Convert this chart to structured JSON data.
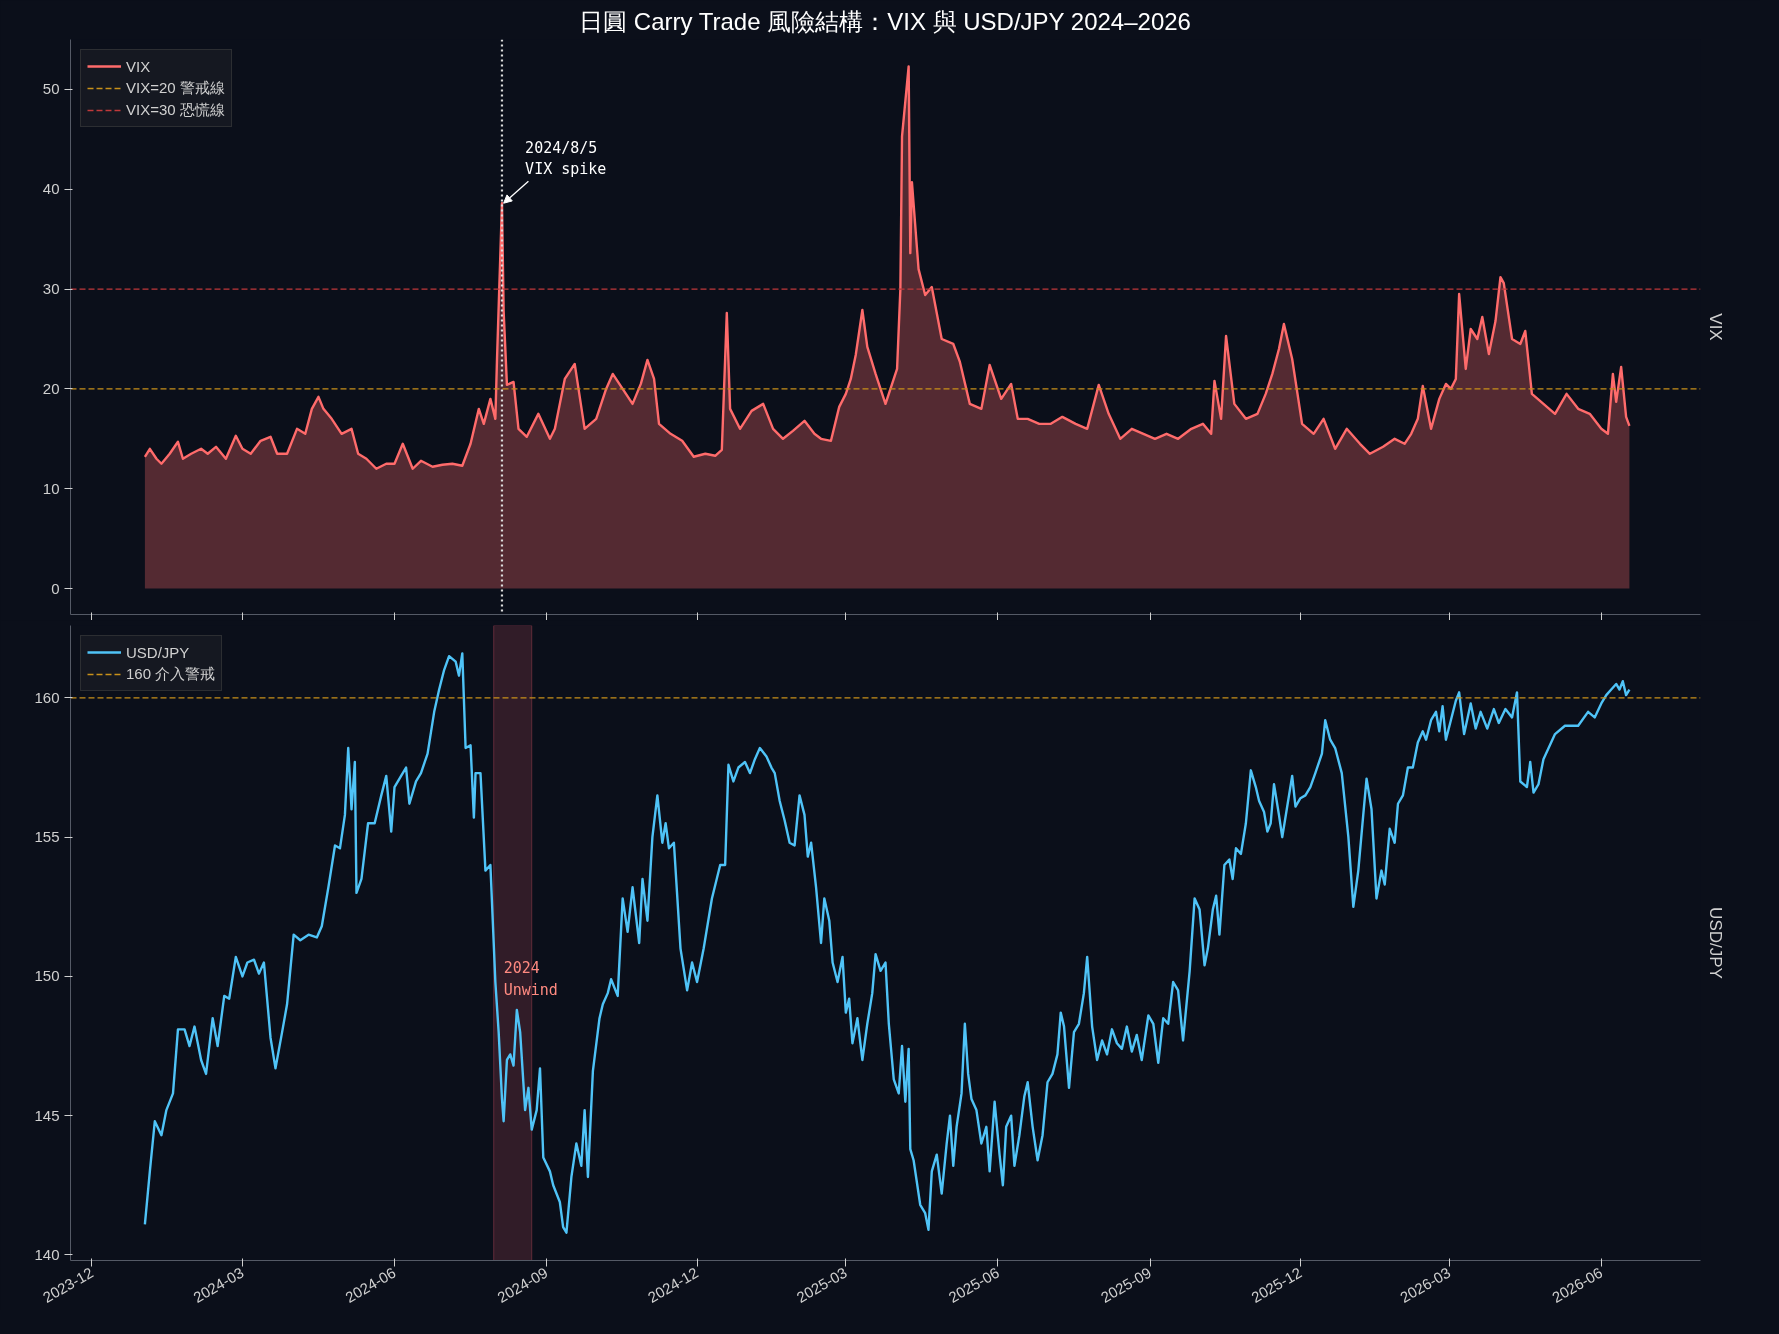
{
  "chart_data": [
    {
      "type": "area",
      "title": "日圓 Carry Trade 風險結構：VIX 與 USD/JPY 2024–2026",
      "ylabel": "VIX",
      "legend": "top left",
      "tick_labels": "y",
      "grid": false,
      "xlim": [
        "2023-11-18",
        "2026-07-31"
      ],
      "ylim": [
        -2.6,
        55
      ],
      "yticks": [
        0,
        10,
        20,
        30,
        40,
        50
      ],
      "xticks": [
        {
          "value": "2023-12-01",
          "label": null
        },
        {
          "value": "2024-03-01",
          "label": null
        },
        {
          "value": "2024-06-01",
          "label": null
        },
        {
          "value": "2024-09-01",
          "label": null
        },
        {
          "value": "2024-12-01",
          "label": null
        },
        {
          "value": "2025-03-01",
          "label": null
        },
        {
          "value": "2025-06-01",
          "label": null
        },
        {
          "value": "2025-09-01",
          "label": null
        },
        {
          "value": "2025-12-01",
          "label": null
        },
        {
          "value": "2026-03-01",
          "label": null
        },
        {
          "value": "2026-06-01",
          "label": null
        }
      ],
      "series": [
        {
          "name": "VIX",
          "color": "#ff6b6b",
          "x": [
            "2024-01-02",
            "2024-01-05",
            "2024-01-09",
            "2024-01-12",
            "2024-01-17",
            "2024-01-22",
            "2024-01-25",
            "2024-01-30",
            "2024-02-05",
            "2024-02-09",
            "2024-02-14",
            "2024-02-20",
            "2024-02-26",
            "2024-03-01",
            "2024-03-06",
            "2024-03-12",
            "2024-03-18",
            "2024-03-22",
            "2024-03-28",
            "2024-04-03",
            "2024-04-08",
            "2024-04-12",
            "2024-04-16",
            "2024-04-19",
            "2024-04-24",
            "2024-04-30",
            "2024-05-06",
            "2024-05-10",
            "2024-05-15",
            "2024-05-21",
            "2024-05-27",
            "2024-06-01",
            "2024-06-06",
            "2024-06-12",
            "2024-06-17",
            "2024-06-24",
            "2024-06-30",
            "2024-07-06",
            "2024-07-12",
            "2024-07-17",
            "2024-07-22",
            "2024-07-25",
            "2024-07-29",
            "2024-08-01",
            "2024-08-02",
            "2024-08-05",
            "2024-08-06",
            "2024-08-08",
            "2024-08-12",
            "2024-08-15",
            "2024-08-20",
            "2024-08-27",
            "2024-09-03",
            "2024-09-06",
            "2024-09-12",
            "2024-09-18",
            "2024-09-24",
            "2024-10-01",
            "2024-10-07",
            "2024-10-11",
            "2024-10-17",
            "2024-10-23",
            "2024-10-28",
            "2024-11-01",
            "2024-11-05",
            "2024-11-08",
            "2024-11-15",
            "2024-11-22",
            "2024-11-29",
            "2024-12-06",
            "2024-12-12",
            "2024-12-16",
            "2024-12-19",
            "2024-12-21",
            "2024-12-27",
            "2025-01-03",
            "2025-01-10",
            "2025-01-16",
            "2025-01-22",
            "2025-01-28",
            "2025-02-04",
            "2025-02-10",
            "2025-02-14",
            "2025-02-20",
            "2025-02-25",
            "2025-03-01",
            "2025-03-04",
            "2025-03-07",
            "2025-03-11",
            "2025-03-14",
            "2025-03-19",
            "2025-03-25",
            "2025-04-01",
            "2025-04-03",
            "2025-04-04",
            "2025-04-08",
            "2025-04-09",
            "2025-04-10",
            "2025-04-14",
            "2025-04-18",
            "2025-04-22",
            "2025-04-28",
            "2025-05-05",
            "2025-05-09",
            "2025-05-15",
            "2025-05-22",
            "2025-05-27",
            "2025-06-03",
            "2025-06-09",
            "2025-06-13",
            "2025-06-19",
            "2025-06-26",
            "2025-07-03",
            "2025-07-10",
            "2025-07-18",
            "2025-07-25",
            "2025-08-01",
            "2025-08-07",
            "2025-08-14",
            "2025-08-21",
            "2025-08-28",
            "2025-09-04",
            "2025-09-11",
            "2025-09-18",
            "2025-09-26",
            "2025-10-03",
            "2025-10-08",
            "2025-10-10",
            "2025-10-14",
            "2025-10-17",
            "2025-10-22",
            "2025-10-29",
            "2025-11-05",
            "2025-11-10",
            "2025-11-14",
            "2025-11-18",
            "2025-11-21",
            "2025-11-26",
            "2025-12-02",
            "2025-12-09",
            "2025-12-15",
            "2025-12-22",
            "2025-12-29",
            "2026-01-06",
            "2026-01-12",
            "2026-01-20",
            "2026-01-27",
            "2026-02-02",
            "2026-02-06",
            "2026-02-10",
            "2026-02-13",
            "2026-02-18",
            "2026-02-23",
            "2026-02-27",
            "2026-03-02",
            "2026-03-05",
            "2026-03-07",
            "2026-03-11",
            "2026-03-14",
            "2026-03-18",
            "2026-03-21",
            "2026-03-25",
            "2026-03-29",
            "2026-04-01",
            "2026-04-03",
            "2026-04-08",
            "2026-04-13",
            "2026-04-16",
            "2026-04-20",
            "2026-04-27",
            "2026-05-04",
            "2026-05-11",
            "2026-05-18",
            "2026-05-25",
            "2026-06-01",
            "2026-06-05",
            "2026-06-08",
            "2026-06-10",
            "2026-06-13",
            "2026-06-16",
            "2026-06-18"
          ],
          "values": [
            13.2,
            14,
            13,
            12.5,
            13.5,
            14.7,
            13,
            13.5,
            14,
            13.5,
            14.2,
            13,
            15.3,
            14,
            13.5,
            14.8,
            15.2,
            13.5,
            13.5,
            16,
            15.5,
            18,
            19.2,
            18,
            17,
            15.5,
            16,
            13.5,
            13,
            12,
            12.5,
            12.5,
            14.5,
            12,
            12.8,
            12.2,
            12.4,
            12.5,
            12.3,
            14.5,
            18,
            16.5,
            19,
            17,
            23,
            38.6,
            27.8,
            20.4,
            20.7,
            16,
            15.2,
            17.5,
            15,
            16,
            21,
            22.5,
            16,
            17,
            20,
            21.5,
            20,
            18.5,
            20.5,
            22.9,
            21,
            16.5,
            15.5,
            14.8,
            13.2,
            13.5,
            13.3,
            13.9,
            27.6,
            18,
            16,
            17.8,
            18.5,
            16,
            15,
            15.8,
            16.8,
            15.5,
            15,
            14.8,
            18.2,
            19.5,
            21,
            23.4,
            27.9,
            24.2,
            21.5,
            18.5,
            22,
            30,
            45.3,
            52.3,
            33.6,
            40.7,
            32,
            29.4,
            30.2,
            25,
            24.5,
            22.7,
            18.5,
            18,
            22.4,
            19,
            20.5,
            17,
            17,
            16.5,
            16.5,
            17.2,
            16.5,
            16,
            20.4,
            17.5,
            15,
            16,
            15.5,
            15,
            15.5,
            15,
            16,
            16.5,
            15.5,
            20.8,
            17,
            25.3,
            18.5,
            17,
            17.5,
            19.5,
            21.5,
            24,
            26.5,
            23,
            16.5,
            15.5,
            17,
            14,
            16,
            14.5,
            13.5,
            14.2,
            15,
            14.5,
            15.5,
            17,
            20.3,
            16,
            19,
            20.5,
            20,
            21,
            29.5,
            22,
            26,
            25,
            27.2,
            23.5,
            26.8,
            31.2,
            30.6,
            25,
            24.5,
            25.8,
            19.5,
            18.5,
            17.5,
            19.5,
            18,
            17.5,
            16,
            15.5,
            21.5,
            18.7,
            22.2,
            17.2,
            16.3
          ]
        }
      ],
      "ref_lines": [
        {
          "axis": "y",
          "value": 20,
          "label": "VIX=20 警戒線",
          "color": "#c8901a",
          "line_style": "dashed"
        },
        {
          "axis": "y",
          "value": 30,
          "label": "VIX=30 恐慌線",
          "color": "#c0393b",
          "line_style": "dashed"
        },
        {
          "axis": "x",
          "value": "2024-08-05",
          "color": "#dddddd",
          "line_style": "dotted"
        }
      ],
      "annotations": [
        {
          "text": "2024/8/5\nVIX spike",
          "x": "2024-08-05",
          "y": 38.6
        }
      ]
    },
    {
      "type": "line",
      "ylabel": "USD/JPY",
      "legend": "top left",
      "grid": false,
      "xlim": [
        "2023-11-18",
        "2026-07-31"
      ],
      "ylim": [
        139.8,
        162.6
      ],
      "yticks": [
        140,
        145,
        150,
        155,
        160
      ],
      "xticks": [
        {
          "value": "2023-12-01",
          "label": "2023-12"
        },
        {
          "value": "2024-03-01",
          "label": "2024-03"
        },
        {
          "value": "2024-06-01",
          "label": "2024-06"
        },
        {
          "value": "2024-09-01",
          "label": "2024-09"
        },
        {
          "value": "2024-12-01",
          "label": "2024-12"
        },
        {
          "value": "2025-03-01",
          "label": "2025-03"
        },
        {
          "value": "2025-06-01",
          "label": "2025-06"
        },
        {
          "value": "2025-09-01",
          "label": "2025-09"
        },
        {
          "value": "2025-12-01",
          "label": "2025-12"
        },
        {
          "value": "2026-03-01",
          "label": "2026-03"
        },
        {
          "value": "2026-06-01",
          "label": "2026-06"
        }
      ],
      "series": [
        {
          "name": "USD/JPY",
          "color": "#4fc3f7",
          "x": [
            "2024-01-02",
            "2024-01-05",
            "2024-01-08",
            "2024-01-12",
            "2024-01-15",
            "2024-01-19",
            "2024-01-22",
            "2024-01-26",
            "2024-01-29",
            "2024-02-01",
            "2024-02-05",
            "2024-02-08",
            "2024-02-12",
            "2024-02-15",
            "2024-02-19",
            "2024-02-22",
            "2024-02-26",
            "2024-03-01",
            "2024-03-04",
            "2024-03-08",
            "2024-03-11",
            "2024-03-14",
            "2024-03-18",
            "2024-03-21",
            "2024-03-25",
            "2024-03-28",
            "2024-04-01",
            "2024-04-05",
            "2024-04-10",
            "2024-04-15",
            "2024-04-18",
            "2024-04-22",
            "2024-04-26",
            "2024-04-29",
            "2024-05-02",
            "2024-05-04",
            "2024-05-06",
            "2024-05-08",
            "2024-05-09",
            "2024-05-12",
            "2024-05-16",
            "2024-05-20",
            "2024-05-24",
            "2024-05-27",
            "2024-05-30",
            "2024-06-01",
            "2024-06-05",
            "2024-06-08",
            "2024-06-10",
            "2024-06-14",
            "2024-06-17",
            "2024-06-21",
            "2024-06-25",
            "2024-06-28",
            "2024-07-01",
            "2024-07-04",
            "2024-07-08",
            "2024-07-10",
            "2024-07-12",
            "2024-07-14",
            "2024-07-17",
            "2024-07-19",
            "2024-07-20",
            "2024-07-23",
            "2024-07-26",
            "2024-07-29",
            "2024-08-01",
            "2024-08-03",
            "2024-08-05",
            "2024-08-06",
            "2024-08-08",
            "2024-08-10",
            "2024-08-12",
            "2024-08-14",
            "2024-08-16",
            "2024-08-19",
            "2024-08-21",
            "2024-08-23",
            "2024-08-26",
            "2024-08-28",
            "2024-08-30",
            "2024-09-03",
            "2024-09-05",
            "2024-09-09",
            "2024-09-11",
            "2024-09-13",
            "2024-09-16",
            "2024-09-19",
            "2024-09-22",
            "2024-09-24",
            "2024-09-26",
            "2024-09-29",
            "2024-10-03",
            "2024-10-05",
            "2024-10-08",
            "2024-10-10",
            "2024-10-14",
            "2024-10-17",
            "2024-10-20",
            "2024-10-23",
            "2024-10-27",
            "2024-10-29",
            "2024-11-01",
            "2024-11-04",
            "2024-11-07",
            "2024-11-10",
            "2024-11-12",
            "2024-11-14",
            "2024-11-17",
            "2024-11-21",
            "2024-11-25",
            "2024-11-28",
            "2024-12-01",
            "2024-12-05",
            "2024-12-10",
            "2024-12-15",
            "2024-12-18",
            "2024-12-20",
            "2024-12-23",
            "2024-12-26",
            "2024-12-30",
            "2025-01-02",
            "2025-01-05",
            "2025-01-08",
            "2025-01-12",
            "2025-01-15",
            "2025-01-17",
            "2025-01-20",
            "2025-01-23",
            "2025-01-26",
            "2025-01-29",
            "2025-02-01",
            "2025-02-04",
            "2025-02-06",
            "2025-02-08",
            "2025-02-11",
            "2025-02-14",
            "2025-02-16",
            "2025-02-19",
            "2025-02-21",
            "2025-02-24",
            "2025-02-27",
            "2025-03-01",
            "2025-03-03",
            "2025-03-05",
            "2025-03-08",
            "2025-03-11",
            "2025-03-14",
            "2025-03-17",
            "2025-03-19",
            "2025-03-22",
            "2025-03-25",
            "2025-03-27",
            "2025-03-30",
            "2025-04-02",
            "2025-04-04",
            "2025-04-06",
            "2025-04-08",
            "2025-04-09",
            "2025-04-11",
            "2025-04-15",
            "2025-04-18",
            "2025-04-20",
            "2025-04-22",
            "2025-04-25",
            "2025-04-28",
            "2025-05-01",
            "2025-05-03",
            "2025-05-05",
            "2025-05-07",
            "2025-05-10",
            "2025-05-12",
            "2025-05-14",
            "2025-05-16",
            "2025-05-19",
            "2025-05-22",
            "2025-05-25",
            "2025-05-27",
            "2025-05-30",
            "2025-06-02",
            "2025-06-04",
            "2025-06-06",
            "2025-06-09",
            "2025-06-11",
            "2025-06-14",
            "2025-06-17",
            "2025-06-19",
            "2025-06-22",
            "2025-06-25",
            "2025-06-28",
            "2025-07-01",
            "2025-07-04",
            "2025-07-07",
            "2025-07-09",
            "2025-07-11",
            "2025-07-14",
            "2025-07-17",
            "2025-07-20",
            "2025-07-23",
            "2025-07-25",
            "2025-07-28",
            "2025-07-31",
            "2025-08-03",
            "2025-08-06",
            "2025-08-09",
            "2025-08-12",
            "2025-08-15",
            "2025-08-18",
            "2025-08-21",
            "2025-08-24",
            "2025-08-27",
            "2025-08-31",
            "2025-09-03",
            "2025-09-06",
            "2025-09-09",
            "2025-09-12",
            "2025-09-15",
            "2025-09-18",
            "2025-09-21",
            "2025-09-25",
            "2025-09-28",
            "2025-10-01",
            "2025-10-04",
            "2025-10-06",
            "2025-10-09",
            "2025-10-11",
            "2025-10-13",
            "2025-10-16",
            "2025-10-19",
            "2025-10-21",
            "2025-10-23",
            "2025-10-26",
            "2025-10-29",
            "2025-11-01",
            "2025-11-04",
            "2025-11-06",
            "2025-11-09",
            "2025-11-11",
            "2025-11-13",
            "2025-11-15",
            "2025-11-18",
            "2025-11-20",
            "2025-11-23",
            "2025-11-26",
            "2025-11-28",
            "2025-12-01",
            "2025-12-04",
            "2025-12-07",
            "2025-12-10",
            "2025-12-14",
            "2025-12-16",
            "2025-12-19",
            "2025-12-22",
            "2025-12-26",
            "2025-12-30",
            "2026-01-02",
            "2026-01-05",
            "2026-01-08",
            "2026-01-10",
            "2026-01-13",
            "2026-01-16",
            "2026-01-19",
            "2026-01-21",
            "2026-01-24",
            "2026-01-27",
            "2026-01-29",
            "2026-02-01",
            "2026-02-04",
            "2026-02-07",
            "2026-02-10",
            "2026-02-13",
            "2026-02-15",
            "2026-02-18",
            "2026-02-21",
            "2026-02-23",
            "2026-02-25",
            "2026-02-27",
            "2026-03-02",
            "2026-03-05",
            "2026-03-07",
            "2026-03-10",
            "2026-03-14",
            "2026-03-17",
            "2026-03-20",
            "2026-03-24",
            "2026-03-28",
            "2026-03-31",
            "2026-04-04",
            "2026-04-08",
            "2026-04-11",
            "2026-04-13",
            "2026-04-17",
            "2026-04-19",
            "2026-04-21",
            "2026-04-24",
            "2026-04-27",
            "2026-05-04",
            "2026-05-10",
            "2026-05-18",
            "2026-05-24",
            "2026-05-28",
            "2026-06-01",
            "2026-06-04",
            "2026-06-07",
            "2026-06-10",
            "2026-06-12",
            "2026-06-14",
            "2026-06-16",
            "2026-06-18"
          ],
          "values": [
            141.1,
            143,
            144.8,
            144.3,
            145.2,
            145.8,
            148.1,
            148.1,
            147.5,
            148.2,
            147,
            146.5,
            148.5,
            147.5,
            149.3,
            149.2,
            150.7,
            150,
            150.5,
            150.6,
            150.1,
            150.5,
            147.8,
            146.7,
            148,
            149,
            151.5,
            151.3,
            151.5,
            151.4,
            151.8,
            153.2,
            154.7,
            154.6,
            155.8,
            158.2,
            156,
            157.7,
            153,
            153.5,
            155.5,
            155.5,
            156.5,
            157.2,
            155.2,
            156.8,
            157.2,
            157.5,
            156.2,
            157,
            157.3,
            158,
            159.5,
            160.3,
            161,
            161.5,
            161.3,
            160.8,
            161.6,
            158.2,
            158.3,
            155.7,
            157.3,
            157.3,
            153.8,
            154,
            149.8,
            148,
            145.6,
            144.8,
            147,
            147.2,
            146.8,
            148.8,
            148,
            145.2,
            146,
            144.5,
            145.2,
            146.7,
            143.5,
            143,
            142.5,
            141.9,
            141,
            140.8,
            142.8,
            144,
            143.2,
            145.2,
            142.8,
            146.6,
            148.5,
            149,
            149.4,
            149.9,
            149.3,
            152.8,
            151.6,
            153.2,
            151.2,
            153.5,
            152,
            155,
            156.5,
            154.8,
            155.5,
            154.6,
            154.8,
            151,
            149.5,
            150.5,
            149.8,
            151,
            152.8,
            154,
            154,
            157.6,
            157,
            157.5,
            157.7,
            157.3,
            157.8,
            158.2,
            157.9,
            157.5,
            157.3,
            156.3,
            155.6,
            154.8,
            154.7,
            156.5,
            155.8,
            154.3,
            154.8,
            153.2,
            151.2,
            152.8,
            152,
            150.5,
            149.8,
            150.7,
            148.7,
            149.2,
            147.6,
            148.5,
            147,
            148.3,
            149.4,
            150.8,
            150.2,
            150.5,
            148.3,
            146.3,
            145.8,
            147.5,
            145.5,
            147.4,
            143.8,
            143.4,
            141.8,
            141.5,
            140.9,
            143,
            143.6,
            142.2,
            144,
            145,
            143.2,
            144.6,
            145.8,
            148.3,
            146.5,
            145.6,
            145.2,
            144,
            144.6,
            143,
            145.5,
            143.6,
            142.5,
            144.6,
            145,
            143.2,
            144.3,
            145.7,
            146.2,
            144.6,
            143.4,
            144.3,
            146.2,
            146.5,
            147.2,
            148.7,
            148.2,
            146,
            148,
            148.3,
            149.4,
            150.7,
            148.2,
            147,
            147.7,
            147.2,
            148.1,
            147.6,
            147.4,
            148.2,
            147.3,
            147.9,
            147,
            148.6,
            148.3,
            146.9,
            148.5,
            148.3,
            149.8,
            149.5,
            147.7,
            150.2,
            152.8,
            152.4,
            150.4,
            151,
            152.4,
            152.9,
            151.5,
            154,
            154.2,
            153.5,
            154.6,
            154.4,
            155.5,
            157.4,
            156.8,
            156.3,
            155.9,
            155.2,
            155.5,
            156.9,
            155.8,
            155,
            156.1,
            157.2,
            156.1,
            156.4,
            156.5,
            156.8,
            157.3,
            158,
            159.2,
            158.5,
            158.2,
            157.3,
            155,
            152.5,
            153.8,
            155.8,
            157.1,
            156,
            152.8,
            153.8,
            153.3,
            155.3,
            154.8,
            156.2,
            156.5,
            157.5,
            157.5,
            158.4,
            158.8,
            158.5,
            159.2,
            159.5,
            158.8,
            159.7,
            158.5,
            159.2,
            159.9,
            160.2,
            158.7,
            159.8,
            158.9,
            159.5,
            158.9,
            159.6,
            159.1,
            159.6,
            159.3,
            160.2,
            157,
            156.8,
            157.7,
            156.6,
            156.9,
            157.8,
            158.7,
            159,
            159,
            159.5,
            159.3,
            159.8,
            160.1,
            160.3,
            160.5,
            160.3,
            160.6,
            160.1,
            160.3
          ]
        }
      ],
      "ref_lines": [
        {
          "axis": "y",
          "value": 160,
          "label": "160 介入警戒",
          "color": "#c8901a",
          "line_style": "dashed"
        }
      ],
      "bands": [
        {
          "axis": "x",
          "from": "2024-07-31",
          "to": "2024-08-23",
          "label": "2024\nUnwind",
          "color": "#8b3a4a"
        }
      ]
    }
  ]
}
